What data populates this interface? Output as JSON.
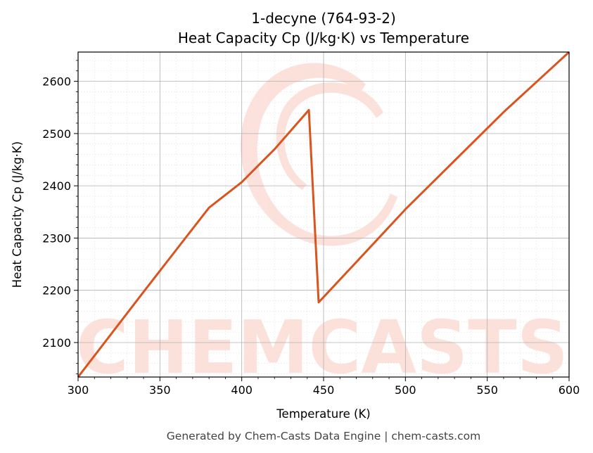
{
  "chart_data": {
    "type": "line",
    "title_line1": "1-decyne (764-93-2)",
    "title_line2": "Heat Capacity Cp (J/kg·K) vs Temperature",
    "xlabel": "Temperature (K)",
    "ylabel": "Heat Capacity Cp (J/kg·K)",
    "xlim": [
      300,
      600
    ],
    "ylim": [
      2034,
      2656
    ],
    "x_ticks": [
      300,
      350,
      400,
      450,
      500,
      550,
      600
    ],
    "y_ticks": [
      2100,
      2200,
      2300,
      2400,
      2500,
      2600
    ],
    "grid": true,
    "series": [
      {
        "color": "#d9541e",
        "points": [
          [
            300,
            2034
          ],
          [
            340,
            2197
          ],
          [
            380,
            2358
          ],
          [
            400,
            2407
          ],
          [
            420,
            2470
          ],
          [
            441,
            2545
          ],
          [
            447,
            2177
          ],
          [
            470,
            2254
          ],
          [
            500,
            2355
          ],
          [
            530,
            2448
          ],
          [
            560,
            2541
          ],
          [
            600,
            2656
          ]
        ]
      }
    ]
  },
  "watermark": "CHEMCASTS",
  "footer": "Generated by Chem-Casts Data Engine | chem-casts.com"
}
